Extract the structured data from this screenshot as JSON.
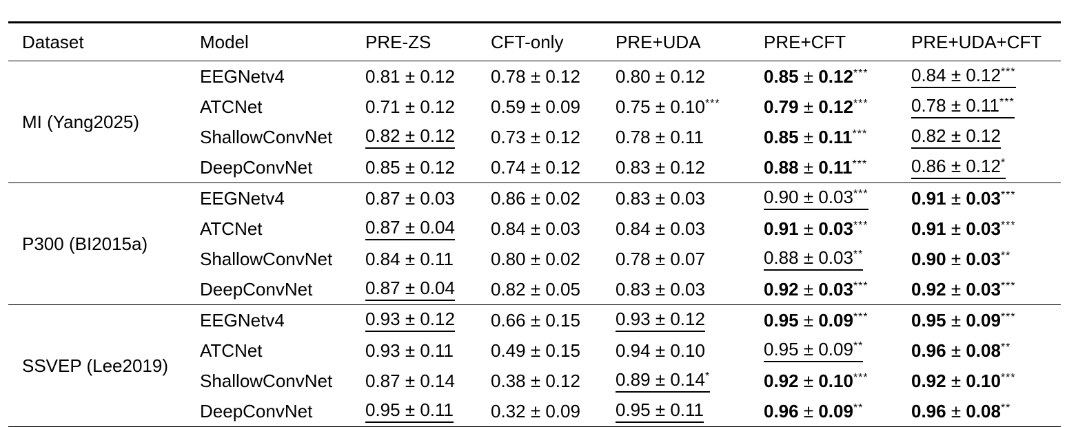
{
  "table": {
    "plus_minus": "±",
    "columns": [
      "Dataset",
      "Model",
      "PRE-ZS",
      "CFT-only",
      "PRE+UDA",
      "PRE+CFT",
      "PRE+UDA+CFT"
    ],
    "groups": [
      {
        "dataset": "MI (Yang2025)",
        "rows": [
          {
            "model": "EEGNetv4",
            "cells": [
              {
                "mean": "0.81",
                "std": "0.12",
                "stars": "",
                "bold": false,
                "underline": false
              },
              {
                "mean": "0.78",
                "std": "0.12",
                "stars": "",
                "bold": false,
                "underline": false
              },
              {
                "mean": "0.80",
                "std": "0.12",
                "stars": "",
                "bold": false,
                "underline": false
              },
              {
                "mean": "0.85",
                "std": "0.12",
                "stars": "***",
                "bold": true,
                "underline": false
              },
              {
                "mean": "0.84",
                "std": "0.12",
                "stars": "***",
                "bold": false,
                "underline": true
              }
            ]
          },
          {
            "model": "ATCNet",
            "cells": [
              {
                "mean": "0.71",
                "std": "0.12",
                "stars": "",
                "bold": false,
                "underline": false
              },
              {
                "mean": "0.59",
                "std": "0.09",
                "stars": "",
                "bold": false,
                "underline": false
              },
              {
                "mean": "0.75",
                "std": "0.10",
                "stars": "***",
                "bold": false,
                "underline": false
              },
              {
                "mean": "0.79",
                "std": "0.12",
                "stars": "***",
                "bold": true,
                "underline": false
              },
              {
                "mean": "0.78",
                "std": "0.11",
                "stars": "***",
                "bold": false,
                "underline": true
              }
            ]
          },
          {
            "model": "ShallowConvNet",
            "cells": [
              {
                "mean": "0.82",
                "std": "0.12",
                "stars": "",
                "bold": false,
                "underline": true
              },
              {
                "mean": "0.73",
                "std": "0.12",
                "stars": "",
                "bold": false,
                "underline": false
              },
              {
                "mean": "0.78",
                "std": "0.11",
                "stars": "",
                "bold": false,
                "underline": false
              },
              {
                "mean": "0.85",
                "std": "0.11",
                "stars": "***",
                "bold": true,
                "underline": false
              },
              {
                "mean": "0.82",
                "std": "0.12",
                "stars": "",
                "bold": false,
                "underline": true
              }
            ]
          },
          {
            "model": "DeepConvNet",
            "cells": [
              {
                "mean": "0.85",
                "std": "0.12",
                "stars": "",
                "bold": false,
                "underline": false
              },
              {
                "mean": "0.74",
                "std": "0.12",
                "stars": "",
                "bold": false,
                "underline": false
              },
              {
                "mean": "0.83",
                "std": "0.12",
                "stars": "",
                "bold": false,
                "underline": false
              },
              {
                "mean": "0.88",
                "std": "0.11",
                "stars": "***",
                "bold": true,
                "underline": false
              },
              {
                "mean": "0.86",
                "std": "0.12",
                "stars": "*",
                "bold": false,
                "underline": true
              }
            ]
          }
        ]
      },
      {
        "dataset": "P300 (BI2015a)",
        "rows": [
          {
            "model": "EEGNetv4",
            "cells": [
              {
                "mean": "0.87",
                "std": "0.03",
                "stars": "",
                "bold": false,
                "underline": false
              },
              {
                "mean": "0.86",
                "std": "0.02",
                "stars": "",
                "bold": false,
                "underline": false
              },
              {
                "mean": "0.83",
                "std": "0.03",
                "stars": "",
                "bold": false,
                "underline": false
              },
              {
                "mean": "0.90",
                "std": "0.03",
                "stars": "***",
                "bold": false,
                "underline": true
              },
              {
                "mean": "0.91",
                "std": "0.03",
                "stars": "***",
                "bold": true,
                "underline": false
              }
            ]
          },
          {
            "model": "ATCNet",
            "cells": [
              {
                "mean": "0.87",
                "std": "0.04",
                "stars": "",
                "bold": false,
                "underline": true
              },
              {
                "mean": "0.84",
                "std": "0.03",
                "stars": "",
                "bold": false,
                "underline": false
              },
              {
                "mean": "0.84",
                "std": "0.03",
                "stars": "",
                "bold": false,
                "underline": false
              },
              {
                "mean": "0.91",
                "std": "0.03",
                "stars": "***",
                "bold": true,
                "underline": false
              },
              {
                "mean": "0.91",
                "std": "0.03",
                "stars": "***",
                "bold": true,
                "underline": false
              }
            ]
          },
          {
            "model": "ShallowConvNet",
            "cells": [
              {
                "mean": "0.84",
                "std": "0.11",
                "stars": "",
                "bold": false,
                "underline": false
              },
              {
                "mean": "0.80",
                "std": "0.02",
                "stars": "",
                "bold": false,
                "underline": false
              },
              {
                "mean": "0.78",
                "std": "0.07",
                "stars": "",
                "bold": false,
                "underline": false
              },
              {
                "mean": "0.88",
                "std": "0.03",
                "stars": "**",
                "bold": false,
                "underline": true
              },
              {
                "mean": "0.90",
                "std": "0.03",
                "stars": "**",
                "bold": true,
                "underline": false
              }
            ]
          },
          {
            "model": "DeepConvNet",
            "cells": [
              {
                "mean": "0.87",
                "std": "0.04",
                "stars": "",
                "bold": false,
                "underline": true
              },
              {
                "mean": "0.82",
                "std": "0.05",
                "stars": "",
                "bold": false,
                "underline": false
              },
              {
                "mean": "0.83",
                "std": "0.03",
                "stars": "",
                "bold": false,
                "underline": false
              },
              {
                "mean": "0.92",
                "std": "0.03",
                "stars": "***",
                "bold": true,
                "underline": false
              },
              {
                "mean": "0.92",
                "std": "0.03",
                "stars": "***",
                "bold": true,
                "underline": false
              }
            ]
          }
        ]
      },
      {
        "dataset": "SSVEP (Lee2019)",
        "rows": [
          {
            "model": "EEGNetv4",
            "cells": [
              {
                "mean": "0.93",
                "std": "0.12",
                "stars": "",
                "bold": false,
                "underline": true
              },
              {
                "mean": "0.66",
                "std": "0.15",
                "stars": "",
                "bold": false,
                "underline": false
              },
              {
                "mean": "0.93",
                "std": "0.12",
                "stars": "",
                "bold": false,
                "underline": true
              },
              {
                "mean": "0.95",
                "std": "0.09",
                "stars": "***",
                "bold": true,
                "underline": false
              },
              {
                "mean": "0.95",
                "std": "0.09",
                "stars": "***",
                "bold": true,
                "underline": false
              }
            ]
          },
          {
            "model": "ATCNet",
            "cells": [
              {
                "mean": "0.93",
                "std": "0.11",
                "stars": "",
                "bold": false,
                "underline": false
              },
              {
                "mean": "0.49",
                "std": "0.15",
                "stars": "",
                "bold": false,
                "underline": false
              },
              {
                "mean": "0.94",
                "std": "0.10",
                "stars": "",
                "bold": false,
                "underline": false
              },
              {
                "mean": "0.95",
                "std": "0.09",
                "stars": "**",
                "bold": false,
                "underline": true
              },
              {
                "mean": "0.96",
                "std": "0.08",
                "stars": "**",
                "bold": true,
                "underline": false
              }
            ]
          },
          {
            "model": "ShallowConvNet",
            "cells": [
              {
                "mean": "0.87",
                "std": "0.14",
                "stars": "",
                "bold": false,
                "underline": false
              },
              {
                "mean": "0.38",
                "std": "0.12",
                "stars": "",
                "bold": false,
                "underline": false
              },
              {
                "mean": "0.89",
                "std": "0.14",
                "stars": "*",
                "bold": false,
                "underline": true
              },
              {
                "mean": "0.92",
                "std": "0.10",
                "stars": "***",
                "bold": true,
                "underline": false
              },
              {
                "mean": "0.92",
                "std": "0.10",
                "stars": "***",
                "bold": true,
                "underline": false
              }
            ]
          },
          {
            "model": "DeepConvNet",
            "cells": [
              {
                "mean": "0.95",
                "std": "0.11",
                "stars": "",
                "bold": false,
                "underline": true
              },
              {
                "mean": "0.32",
                "std": "0.09",
                "stars": "",
                "bold": false,
                "underline": false
              },
              {
                "mean": "0.95",
                "std": "0.11",
                "stars": "",
                "bold": false,
                "underline": true
              },
              {
                "mean": "0.96",
                "std": "0.09",
                "stars": "**",
                "bold": true,
                "underline": false
              },
              {
                "mean": "0.96",
                "std": "0.08",
                "stars": "**",
                "bold": true,
                "underline": false
              }
            ]
          }
        ]
      }
    ]
  }
}
